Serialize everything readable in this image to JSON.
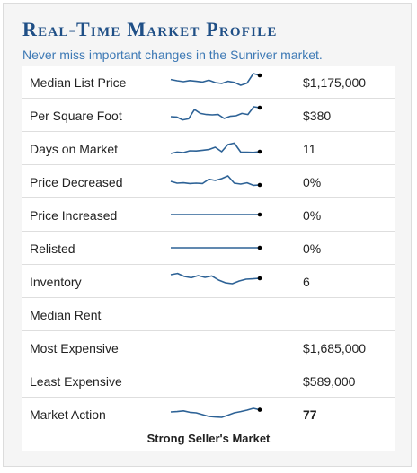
{
  "header": {
    "title": "Real-Time Market Profile",
    "subtitle": "Never miss important changes in the Sunriver market."
  },
  "colors": {
    "title": "#1f4f86",
    "subtitle": "#3d79b5",
    "sparkline": "#2d6296",
    "endpoint": "#000000"
  },
  "rows": [
    {
      "label": "Median List Price",
      "value": "$1,175,000",
      "spark": [
        0.62,
        0.55,
        0.5,
        0.56,
        0.52,
        0.48,
        0.58,
        0.45,
        0.4,
        0.52,
        0.46,
        0.3,
        0.42,
        0.95,
        0.85
      ]
    },
    {
      "label": "Per Square Foot",
      "value": "$380",
      "spark": [
        0.4,
        0.38,
        0.22,
        0.28,
        0.8,
        0.58,
        0.52,
        0.5,
        0.52,
        0.3,
        0.42,
        0.45,
        0.58,
        0.52,
        0.95,
        0.9
      ]
    },
    {
      "label": "Days on Market",
      "value": "11",
      "spark": [
        0.2,
        0.28,
        0.25,
        0.35,
        0.34,
        0.38,
        0.42,
        0.55,
        0.3,
        0.7,
        0.78,
        0.28,
        0.27,
        0.26,
        0.3
      ]
    },
    {
      "label": "Price Decreased",
      "value": "0%",
      "spark": [
        0.5,
        0.4,
        0.42,
        0.38,
        0.4,
        0.38,
        0.62,
        0.55,
        0.65,
        0.8,
        0.4,
        0.35,
        0.42,
        0.28,
        0.3
      ]
    },
    {
      "label": "Price Increased",
      "value": "0%",
      "spark": [
        0.5,
        0.5,
        0.5,
        0.5,
        0.5,
        0.5,
        0.5,
        0.5,
        0.5,
        0.5
      ]
    },
    {
      "label": "Relisted",
      "value": "0%",
      "spark": [
        0.5,
        0.5,
        0.5,
        0.5,
        0.5,
        0.5,
        0.5,
        0.5,
        0.5,
        0.5
      ]
    },
    {
      "label": "Inventory",
      "value": "6",
      "spark": [
        0.85,
        0.92,
        0.75,
        0.68,
        0.8,
        0.7,
        0.78,
        0.55,
        0.4,
        0.35,
        0.5,
        0.6,
        0.62,
        0.65
      ]
    },
    {
      "label": "Median Rent",
      "value": "",
      "spark": null
    },
    {
      "label": "Most Expensive",
      "value": "$1,685,000",
      "spark": null
    },
    {
      "label": "Least Expensive",
      "value": "$589,000",
      "spark": null
    },
    {
      "label": "Market Action",
      "value": "77",
      "bold": true,
      "caption": "Strong Seller's Market",
      "spark": [
        0.6,
        0.62,
        0.66,
        0.58,
        0.55,
        0.45,
        0.35,
        0.32,
        0.3,
        0.42,
        0.55,
        0.62,
        0.7,
        0.8,
        0.72
      ]
    }
  ]
}
